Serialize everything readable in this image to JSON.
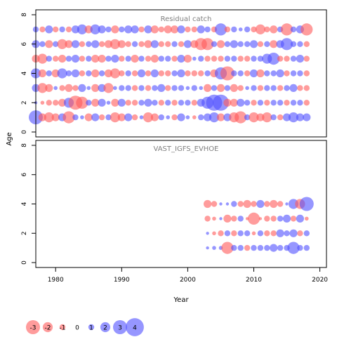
{
  "chart_data": {
    "type": "scatter",
    "encoding": "bubble size = |residual|, red = negative, blue = positive",
    "xlabel": "Year",
    "ylabel": "Age",
    "xlim": [
      1977,
      2021
    ],
    "x_ticks": [
      1980,
      1990,
      2000,
      2010,
      2020
    ],
    "colors": {
      "negative": "#ff5a5a",
      "positive": "#5050ff",
      "frame": "#000000",
      "panel_title": "#808080"
    },
    "panels": [
      {
        "title": "Residual catch",
        "ylim": [
          0,
          8
        ],
        "y_ticks": [
          0,
          2,
          4,
          6,
          8
        ],
        "ages": [
          1,
          2,
          3,
          4,
          5,
          6,
          7
        ],
        "years": [
          1977,
          1978,
          1979,
          1980,
          1981,
          1982,
          1983,
          1984,
          1985,
          1986,
          1987,
          1988,
          1989,
          1990,
          1991,
          1992,
          1993,
          1994,
          1995,
          1996,
          1997,
          1998,
          1999,
          2000,
          2001,
          2002,
          2003,
          2004,
          2005,
          2006,
          2007,
          2008,
          2009,
          2010,
          2011,
          2012,
          2013,
          2014,
          2015,
          2016,
          2017,
          2018
        ],
        "residuals": [
          [
            3.0,
            -1.5,
            -2.0,
            -1.5,
            1.5,
            -2.5,
            1.0,
            0.5,
            -1.5,
            1.5,
            -1.0,
            1.0,
            -2.0,
            -1.5,
            1.5,
            -1.0,
            0.5,
            -2.0,
            -1.5,
            1.0,
            0.5,
            -1.0,
            1.5,
            0.5,
            -0.5,
            1.0,
            1.5,
            2.0,
            -1.5,
            1.5,
            -2.0,
            -2.5,
            1.0,
            -2.0,
            -1.5,
            -2.0,
            1.0,
            -1.0,
            1.5,
            2.0,
            1.5,
            1.5
          ],
          [
            0.3,
            -0.5,
            -1.0,
            -1.0,
            -1.5,
            2.0,
            -3.0,
            -2.5,
            1.0,
            -1.5,
            1.5,
            0.5,
            -1.5,
            1.5,
            -1.0,
            -1.0,
            1.0,
            1.5,
            1.0,
            -1.0,
            1.0,
            -1.0,
            1.0,
            1.0,
            -1.0,
            1.5,
            2.5,
            3.5,
            3.5,
            -1.5,
            -1.5,
            1.5,
            1.0,
            -1.0,
            1.0,
            -1.0,
            1.0,
            1.0,
            -1.0,
            1.0,
            1.0,
            -1.0
          ],
          [
            1.5,
            -2.0,
            -1.5,
            0.5,
            -1.0,
            -1.5,
            -1.0,
            1.5,
            0.5,
            -1.5,
            1.5,
            -2.0,
            0.5,
            1.0,
            1.0,
            -1.0,
            1.0,
            -1.0,
            1.0,
            1.5,
            -1.0,
            1.0,
            1.0,
            0.5,
            1.0,
            0.5,
            -1.5,
            1.0,
            -1.5,
            1.0,
            -1.5,
            -1.0,
            0.5,
            1.0,
            -1.0,
            1.0,
            1.0,
            -1.0,
            1.0,
            1.5,
            -1.0,
            -1.0
          ],
          [
            2.0,
            -1.5,
            1.0,
            -1.5,
            2.0,
            1.0,
            1.5,
            -1.0,
            1.0,
            -1.5,
            1.0,
            -1.5,
            -2.0,
            -1.0,
            1.0,
            -1.0,
            1.5,
            -1.0,
            1.5,
            -1.0,
            -1.0,
            1.0,
            1.5,
            -1.0,
            -1.0,
            -1.0,
            1.0,
            -1.5,
            2.5,
            -3.0,
            1.0,
            1.0,
            -1.0,
            1.5,
            -1.5,
            1.0,
            1.0,
            1.5,
            -1.0,
            1.0,
            1.0,
            -1.0
          ],
          [
            -1.5,
            -2.0,
            1.0,
            -1.0,
            -1.5,
            1.0,
            1.5,
            -1.0,
            1.0,
            -1.5,
            -1.5,
            1.0,
            1.5,
            -1.0,
            1.0,
            -1.5,
            1.0,
            -1.0,
            -1.5,
            1.0,
            1.0,
            -1.0,
            1.5,
            -1.5,
            0.5,
            1.0,
            -1.0,
            -1.0,
            -1.0,
            1.0,
            1.0,
            -1.0,
            -1.0,
            1.0,
            1.0,
            2.0,
            2.5,
            -1.0,
            -1.0,
            1.0,
            1.5,
            -1.0
          ],
          [
            1.5,
            1.0,
            -1.5,
            1.0,
            -2.0,
            -1.5,
            1.5,
            -1.0,
            1.0,
            1.5,
            -1.0,
            -1.5,
            -2.0,
            -1.5,
            -1.0,
            1.0,
            -1.0,
            -1.5,
            1.5,
            -1.0,
            -1.0,
            1.0,
            -1.0,
            1.5,
            -1.5,
            -2.5,
            -2.5,
            1.0,
            -1.5,
            1.0,
            1.5,
            1.0,
            1.0,
            1.5,
            -1.0,
            1.0,
            -1.5,
            1.5,
            2.5,
            1.0,
            1.0,
            -1.0
          ],
          [
            1.0,
            -1.0,
            1.5,
            -1.0,
            1.0,
            -1.0,
            1.5,
            2.0,
            -1.5,
            2.0,
            1.5,
            1.0,
            -1.5,
            1.0,
            1.5,
            1.5,
            -1.0,
            1.5,
            -1.5,
            -1.0,
            -1.5,
            -1.5,
            1.5,
            -1.0,
            -1.0,
            1.5,
            1.0,
            -1.0,
            2.5,
            -1.0,
            1.0,
            0.5,
            1.0,
            -1.0,
            -2.0,
            -1.0,
            -1.5,
            1.0,
            -2.5,
            1.0,
            1.5,
            -2.5
          ]
        ]
      },
      {
        "title": "VAST_IGFS_EVHOE",
        "ylim": [
          0,
          8
        ],
        "y_ticks": [
          0,
          2,
          4,
          6,
          8
        ],
        "ages": [
          1,
          2,
          3,
          4
        ],
        "years": [
          2003,
          2004,
          2005,
          2006,
          2007,
          2008,
          2009,
          2010,
          2011,
          2012,
          2013,
          2014,
          2015,
          2016,
          2017,
          2018
        ],
        "residuals": [
          [
            0.3,
            0.5,
            0.5,
            -2.5,
            1.0,
            1.0,
            -1.0,
            1.0,
            1.0,
            1.0,
            1.5,
            1.0,
            1.0,
            2.5,
            1.0,
            1.0
          ],
          [
            0.3,
            -0.5,
            -1.0,
            1.0,
            -1.0,
            1.0,
            1.0,
            -0.5,
            1.0,
            -1.0,
            -1.0,
            1.5,
            1.0,
            1.5,
            -1.0,
            1.0
          ],
          [
            -1.0,
            -0.5,
            0.3,
            -1.5,
            -1.0,
            1.0,
            -0.3,
            -2.5,
            -0.3,
            -1.0,
            -1.0,
            1.0,
            1.5,
            -1.0,
            1.5,
            -0.5
          ],
          [
            -1.5,
            -1.0,
            0.3,
            0.3,
            1.0,
            -1.0,
            -1.5,
            -1.0,
            1.5,
            -1.0,
            -1.5,
            -1.0,
            0.3,
            2.0,
            -2.0,
            3.0
          ]
        ]
      }
    ],
    "legend": {
      "position": "bottom-left",
      "labels": [
        "-3",
        "-2",
        "-1",
        "0",
        "1",
        "2",
        "3",
        "4"
      ]
    }
  }
}
